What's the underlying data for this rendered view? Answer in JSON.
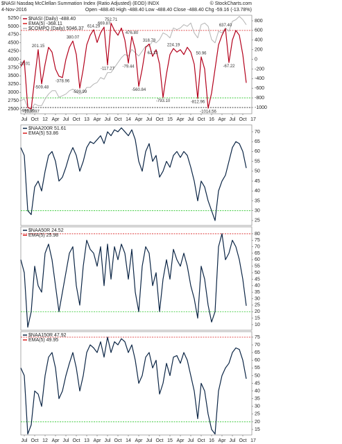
{
  "header": {
    "symbol_line": "$NASI Nasdaq McClellan Summation Index (Ratio Adjusted) (EOD) INDX",
    "date": "4-Nov-2016",
    "quote": "Open -488.40  High -488.40  Low -488.40  Close -488.40  Chg -59.16 (-13.78%)",
    "credit": "© StockCharts.com"
  },
  "chart_data": [
    {
      "type": "line",
      "x": [
        0,
        1,
        2,
        3,
        4,
        5,
        6,
        7,
        8,
        9,
        10,
        11,
        12,
        13,
        14,
        15,
        16,
        17,
        18,
        19,
        20,
        21,
        22,
        23,
        24,
        25,
        26,
        27,
        28,
        29,
        30,
        31,
        32,
        33,
        34,
        35,
        36,
        37,
        38,
        39,
        40,
        41,
        42,
        43,
        44,
        45,
        46,
        47,
        48,
        49,
        50,
        51,
        52,
        53,
        54,
        55,
        56,
        57,
        58,
        59,
        60,
        61,
        62,
        63,
        64,
        65
      ],
      "xlim": [
        0,
        66.6
      ],
      "xticks": [
        {
          "value": 1,
          "label": "Jul"
        },
        {
          "value": 4,
          "label": "Oct"
        },
        {
          "value": 7,
          "label": "12"
        },
        {
          "value": 10,
          "label": "Apr"
        },
        {
          "value": 13,
          "label": "Jul"
        },
        {
          "value": 16,
          "label": "Oct"
        },
        {
          "value": 19,
          "label": "13"
        },
        {
          "value": 22,
          "label": "Apr"
        },
        {
          "value": 25,
          "label": "Jul"
        },
        {
          "value": 28,
          "label": "Oct"
        },
        {
          "value": 31,
          "label": "14"
        },
        {
          "value": 34,
          "label": "Apr"
        },
        {
          "value": 37,
          "label": "Jul"
        },
        {
          "value": 40,
          "label": "Oct"
        },
        {
          "value": 43,
          "label": "15"
        },
        {
          "value": 46,
          "label": "Apr"
        },
        {
          "value": 49,
          "label": "Jul"
        },
        {
          "value": 52,
          "label": "Oct"
        },
        {
          "value": 55,
          "label": "16"
        },
        {
          "value": 58,
          "label": "Apr"
        },
        {
          "value": 61,
          "label": "Jul"
        },
        {
          "value": 64,
          "label": "Oct"
        },
        {
          "value": 67,
          "label": "17"
        }
      ],
      "ylim": [
        2353,
        5334
      ],
      "yticks": [
        2500,
        2750,
        3000,
        3250,
        3500,
        3750,
        4000,
        4250,
        4500,
        4750,
        5000,
        5250
      ],
      "y2lim": [
        -1130,
        915
      ],
      "y2ticks": [
        -1000,
        -800,
        -600,
        -400,
        -200,
        0,
        200,
        400,
        600,
        800
      ],
      "ema_label": "EMA(5) -368.11",
      "reference_lines": [
        {
          "value": 600,
          "color": "#d81e1e",
          "axis": "y2"
        },
        {
          "value": -800,
          "color": "#22c322",
          "axis": "y2"
        },
        {
          "value": -1000,
          "color": "#000000",
          "axis": "y2"
        }
      ],
      "series": [
        {
          "name": "$NASI (Daily) -488.40",
          "color": "#b3001b",
          "axis": "y2",
          "values": [
            -150,
            -22.01,
            -999.95,
            -1030.97,
            -400,
            201.15,
            -509.48,
            -100,
            250,
            150,
            -200,
            -350,
            -378.96,
            0,
            250,
            380.07,
            100,
            -599.99,
            -200,
            300,
            500,
            614.29,
            350,
            550,
            669.87,
            -117.27,
            752.71,
            600,
            500,
            650,
            400,
            -79.44,
            476.8,
            200,
            -560.84,
            -200,
            250,
            318.78,
            62.13,
            200,
            -100,
            -793.1,
            -300,
            100,
            224.19,
            150,
            200,
            100,
            250,
            150,
            -100,
            -812.96,
            50.96,
            -200,
            -1014.56,
            -700,
            -200,
            300,
            500,
            637.4,
            -67.22,
            400,
            600,
            500,
            100,
            -488.4
          ],
          "value_labels": [
            null,
            "-22.01",
            "-999.95",
            "-1030.97",
            null,
            "201.15",
            "-509.48",
            null,
            null,
            null,
            null,
            null,
            "-378.96",
            null,
            null,
            "380.07",
            null,
            "-599.99",
            null,
            null,
            null,
            "614.29",
            null,
            null,
            "669.87",
            "-117.27",
            "752.71",
            null,
            null,
            null,
            null,
            "-79.44",
            "476.80",
            null,
            "-560.84",
            null,
            null,
            "318.78",
            "62.13",
            null,
            null,
            "-793.10",
            null,
            null,
            "224.19",
            null,
            null,
            null,
            null,
            null,
            null,
            "-812.96",
            "50.96",
            null,
            "-1014.56",
            null,
            null,
            null,
            null,
            "637.40",
            "-67.22",
            null,
            null,
            null,
            null,
            null
          ]
        },
        {
          "name": "$COMPQ (Daily) 5046.37",
          "color": "#b4b4b4",
          "axis": "y",
          "values": [
            2750,
            2800,
            2550,
            2500,
            2650,
            2600,
            2600,
            2800,
            2950,
            3050,
            3050,
            2850,
            2900,
            2950,
            3050,
            3100,
            3000,
            2950,
            3000,
            3150,
            3150,
            3250,
            3300,
            3450,
            3400,
            3600,
            3600,
            3750,
            3900,
            4050,
            4150,
            4100,
            4300,
            4200,
            4100,
            4250,
            4400,
            4400,
            4550,
            4500,
            4600,
            4800,
            4750,
            4650,
            4950,
            4900,
            4950,
            5050,
            5000,
            5100,
            4800,
            4650,
            5050,
            5100,
            5000,
            4600,
            4500,
            4850,
            4800,
            4950,
            4850,
            5150,
            5200,
            5300,
            5200,
            5046.37
          ]
        }
      ]
    },
    {
      "type": "line",
      "x": [
        0,
        1,
        2,
        3,
        4,
        5,
        6,
        7,
        8,
        9,
        10,
        11,
        12,
        13,
        14,
        15,
        16,
        17,
        18,
        19,
        20,
        21,
        22,
        23,
        24,
        25,
        26,
        27,
        28,
        29,
        30,
        31,
        32,
        33,
        34,
        35,
        36,
        37,
        38,
        39,
        40,
        41,
        42,
        43,
        44,
        45,
        46,
        47,
        48,
        49,
        50,
        51,
        52,
        53,
        54,
        55,
        56,
        57,
        58,
        59,
        60,
        61,
        62,
        63,
        64,
        65
      ],
      "xlim": [
        0,
        66.6
      ],
      "y2lim": [
        22.5,
        73.5
      ],
      "y2ticks": [
        25,
        30,
        35,
        40,
        45,
        50,
        55,
        60,
        65,
        70
      ],
      "ema_label": "EMA(5) 53.86",
      "reference_lines": [
        {
          "value": 30,
          "color": "#22c322",
          "axis": "y2"
        }
      ],
      "series": [
        {
          "name": "$NAA200R 51.61",
          "color": "#0b2545",
          "axis": "y2",
          "values": [
            62,
            58,
            30,
            28,
            42,
            45,
            40,
            50,
            58,
            60,
            55,
            45,
            47,
            52,
            58,
            62,
            58,
            50,
            55,
            62,
            65,
            64,
            66,
            68,
            64,
            70,
            68,
            71,
            70,
            72,
            70,
            68,
            71,
            66,
            55,
            50,
            60,
            64,
            55,
            58,
            47,
            50,
            55,
            52,
            58,
            60,
            57,
            60,
            58,
            52,
            45,
            35,
            45,
            42,
            35,
            30,
            25,
            40,
            45,
            48,
            55,
            62,
            65,
            64,
            60,
            51.61
          ]
        }
      ]
    },
    {
      "type": "line",
      "x": [
        0,
        1,
        2,
        3,
        4,
        5,
        6,
        7,
        8,
        9,
        10,
        11,
        12,
        13,
        14,
        15,
        16,
        17,
        18,
        19,
        20,
        21,
        22,
        23,
        24,
        25,
        26,
        27,
        28,
        29,
        30,
        31,
        32,
        33,
        34,
        35,
        36,
        37,
        38,
        39,
        40,
        41,
        42,
        43,
        44,
        45,
        46,
        47,
        48,
        49,
        50,
        51,
        52,
        53,
        54,
        55,
        56,
        57,
        58,
        59,
        60,
        61,
        62,
        63,
        64,
        65
      ],
      "xlim": [
        0,
        66.6
      ],
      "y2lim": [
        5.7,
        85.3
      ],
      "y2ticks": [
        10,
        15,
        20,
        25,
        30,
        35,
        40,
        45,
        50,
        55,
        60,
        65,
        70,
        75,
        80
      ],
      "ema_label": "EMA(5) 25.98",
      "reference_lines": [
        {
          "value": 80,
          "color": "#d81e1e",
          "axis": "y2"
        },
        {
          "value": 20,
          "color": "#22c322",
          "axis": "y2"
        }
      ],
      "series": [
        {
          "name": "$NAA50R 24.52",
          "color": "#0b2545",
          "axis": "y2",
          "values": [
            60,
            50,
            8,
            20,
            55,
            40,
            35,
            65,
            72,
            60,
            40,
            20,
            35,
            50,
            65,
            70,
            40,
            25,
            55,
            75,
            68,
            65,
            55,
            70,
            40,
            72,
            45,
            70,
            60,
            72,
            65,
            45,
            68,
            35,
            20,
            55,
            70,
            65,
            40,
            50,
            20,
            45,
            60,
            45,
            68,
            60,
            55,
            65,
            55,
            40,
            30,
            15,
            55,
            45,
            25,
            12,
            20,
            70,
            80,
            60,
            65,
            75,
            70,
            60,
            45,
            24.52
          ]
        }
      ]
    },
    {
      "type": "line",
      "x": [
        0,
        1,
        2,
        3,
        4,
        5,
        6,
        7,
        8,
        9,
        10,
        11,
        12,
        13,
        14,
        15,
        16,
        17,
        18,
        19,
        20,
        21,
        22,
        23,
        24,
        25,
        26,
        27,
        28,
        29,
        30,
        31,
        32,
        33,
        34,
        35,
        36,
        37,
        38,
        39,
        40,
        41,
        42,
        43,
        44,
        45,
        46,
        47,
        48,
        49,
        50,
        51,
        52,
        53,
        54,
        55,
        56,
        57,
        58,
        59,
        60,
        61,
        62,
        63,
        64,
        65
      ],
      "xlim": [
        0,
        66.6
      ],
      "xticks": [
        {
          "value": 1,
          "label": "Jul"
        },
        {
          "value": 4,
          "label": "Oct"
        },
        {
          "value": 7,
          "label": "12"
        },
        {
          "value": 10,
          "label": "Apr"
        },
        {
          "value": 13,
          "label": "Jul"
        },
        {
          "value": 16,
          "label": "Oct"
        },
        {
          "value": 19,
          "label": "13"
        },
        {
          "value": 22,
          "label": "Apr"
        },
        {
          "value": 25,
          "label": "Jul"
        },
        {
          "value": 28,
          "label": "Oct"
        },
        {
          "value": 31,
          "label": "14"
        },
        {
          "value": 34,
          "label": "Apr"
        },
        {
          "value": 37,
          "label": "Jul"
        },
        {
          "value": 40,
          "label": "Oct"
        },
        {
          "value": 43,
          "label": "15"
        },
        {
          "value": 46,
          "label": "Apr"
        },
        {
          "value": 49,
          "label": "Jul"
        },
        {
          "value": 52,
          "label": "Oct"
        },
        {
          "value": 55,
          "label": "16"
        },
        {
          "value": 58,
          "label": "Apr"
        },
        {
          "value": 61,
          "label": "Jul"
        },
        {
          "value": 64,
          "label": "Oct"
        },
        {
          "value": 67,
          "label": "17"
        }
      ],
      "y2lim": [
        11.4,
        78.6
      ],
      "y2ticks": [
        15,
        20,
        25,
        30,
        35,
        40,
        45,
        50,
        55,
        60,
        65,
        70,
        75
      ],
      "ema_label": "EMA(5) 49.95",
      "reference_lines": [
        {
          "value": 75,
          "color": "#d81e1e",
          "axis": "y2"
        },
        {
          "value": 20,
          "color": "#22c322",
          "axis": "y2"
        }
      ],
      "series": [
        {
          "name": "$NAA150R 47.92",
          "color": "#0b2545",
          "axis": "y2",
          "values": [
            55,
            50,
            12,
            18,
            40,
            38,
            30,
            50,
            62,
            65,
            55,
            35,
            40,
            50,
            58,
            65,
            55,
            40,
            50,
            65,
            70,
            68,
            65,
            72,
            62,
            75,
            65,
            72,
            70,
            74,
            72,
            65,
            70,
            60,
            45,
            50,
            62,
            65,
            55,
            60,
            38,
            45,
            58,
            50,
            62,
            63,
            58,
            65,
            60,
            50,
            40,
            22,
            45,
            40,
            25,
            15,
            12,
            40,
            50,
            55,
            58,
            65,
            68,
            67,
            60,
            47.92
          ]
        }
      ]
    }
  ]
}
